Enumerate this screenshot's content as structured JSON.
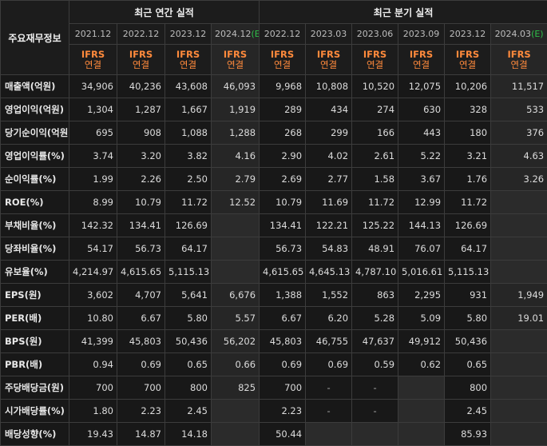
{
  "corner_label": "주요재무정보",
  "groups": {
    "annual": "최근 연간 실적",
    "quarterly": "최근 분기 실적"
  },
  "periods": [
    {
      "label": "2021.12",
      "est": ""
    },
    {
      "label": "2022.12",
      "est": ""
    },
    {
      "label": "2023.12",
      "est": ""
    },
    {
      "label": "2024.12",
      "est": "(E)"
    },
    {
      "label": "2022.12",
      "est": ""
    },
    {
      "label": "2023.03",
      "est": ""
    },
    {
      "label": "2023.06",
      "est": ""
    },
    {
      "label": "2023.09",
      "est": ""
    },
    {
      "label": "2023.12",
      "est": ""
    },
    {
      "label": "2024.03",
      "est": "(E)"
    }
  ],
  "ifrs_label": "IFRS",
  "consolidated_label": "연결",
  "rows": [
    {
      "label": "매출액(억원)",
      "values": [
        "34,906",
        "40,236",
        "43,608",
        "46,093",
        "9,968",
        "10,808",
        "10,520",
        "12,075",
        "10,206",
        "11,517"
      ]
    },
    {
      "label": "영업이익(억원)",
      "values": [
        "1,304",
        "1,287",
        "1,667",
        "1,919",
        "289",
        "434",
        "274",
        "630",
        "328",
        "533"
      ]
    },
    {
      "label": "당기순이익(억원)",
      "values": [
        "695",
        "908",
        "1,088",
        "1,288",
        "268",
        "299",
        "166",
        "443",
        "180",
        "376"
      ]
    },
    {
      "label": "영업이익률(%)",
      "values": [
        "3.74",
        "3.20",
        "3.82",
        "4.16",
        "2.90",
        "4.02",
        "2.61",
        "5.22",
        "3.21",
        "4.63"
      ]
    },
    {
      "label": "순이익률(%)",
      "values": [
        "1.99",
        "2.26",
        "2.50",
        "2.79",
        "2.69",
        "2.77",
        "1.58",
        "3.67",
        "1.76",
        "3.26"
      ]
    },
    {
      "label": "ROE(%)",
      "values": [
        "8.99",
        "10.79",
        "11.72",
        "12.52",
        "10.79",
        "11.69",
        "11.72",
        "12.99",
        "11.72",
        ""
      ]
    },
    {
      "label": "부채비율(%)",
      "values": [
        "142.32",
        "134.41",
        "126.69",
        "",
        "134.41",
        "122.21",
        "125.22",
        "144.13",
        "126.69",
        ""
      ]
    },
    {
      "label": "당좌비율(%)",
      "values": [
        "54.17",
        "56.73",
        "64.17",
        "",
        "56.73",
        "54.83",
        "48.91",
        "76.07",
        "64.17",
        ""
      ]
    },
    {
      "label": "유보율(%)",
      "values": [
        "4,214.97",
        "4,615.65",
        "5,115.13",
        "",
        "4,615.65",
        "4,645.13",
        "4,787.10",
        "5,016.61",
        "5,115.13",
        ""
      ]
    },
    {
      "label": "EPS(원)",
      "values": [
        "3,602",
        "4,707",
        "5,641",
        "6,676",
        "1,388",
        "1,552",
        "863",
        "2,295",
        "931",
        "1,949"
      ]
    },
    {
      "label": "PER(배)",
      "values": [
        "10.80",
        "6.67",
        "5.80",
        "5.57",
        "6.67",
        "6.20",
        "5.28",
        "5.09",
        "5.80",
        "19.01"
      ]
    },
    {
      "label": "BPS(원)",
      "values": [
        "41,399",
        "45,803",
        "50,436",
        "56,202",
        "45,803",
        "46,755",
        "47,637",
        "49,912",
        "50,436",
        ""
      ]
    },
    {
      "label": "PBR(배)",
      "values": [
        "0.94",
        "0.69",
        "0.65",
        "0.66",
        "0.69",
        "0.69",
        "0.59",
        "0.62",
        "0.65",
        ""
      ]
    },
    {
      "label": "주당배당금(원)",
      "values": [
        "700",
        "700",
        "800",
        "825",
        "700",
        "-",
        "-",
        "",
        "800",
        ""
      ]
    },
    {
      "label": "시가배당률(%)",
      "values": [
        "1.80",
        "2.23",
        "2.45",
        "",
        "2.23",
        "-",
        "-",
        "",
        "2.45",
        ""
      ]
    },
    {
      "label": "배당성향(%)",
      "values": [
        "19.43",
        "14.87",
        "14.18",
        "",
        "50.44",
        "",
        "",
        "",
        "85.93",
        ""
      ]
    }
  ]
}
